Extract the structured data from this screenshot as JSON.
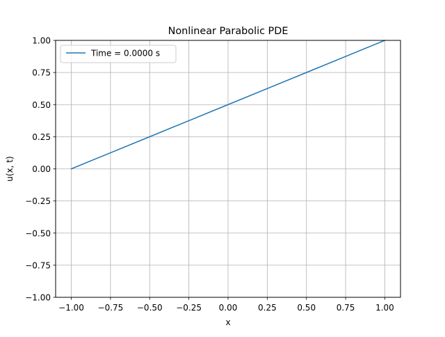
{
  "chart_data": {
    "type": "line",
    "title": "Nonlinear Parabolic PDE",
    "xlabel": "x",
    "ylabel": "u(x, t)",
    "xlim": [
      -1.1,
      1.1
    ],
    "ylim": [
      -1.0,
      1.0
    ],
    "x_ticks": [
      -1.0,
      -0.75,
      -0.5,
      -0.25,
      0.0,
      0.25,
      0.5,
      0.75,
      1.0
    ],
    "x_tick_labels": [
      "−1.00",
      "−0.75",
      "−0.50",
      "−0.25",
      "0.00",
      "0.25",
      "0.50",
      "0.75",
      "1.00"
    ],
    "y_ticks": [
      -1.0,
      -0.75,
      -0.5,
      -0.25,
      0.0,
      0.25,
      0.5,
      0.75,
      1.0
    ],
    "y_tick_labels": [
      "−1.00",
      "−0.75",
      "−0.50",
      "−0.25",
      "0.00",
      "0.25",
      "0.50",
      "0.75",
      "1.00"
    ],
    "grid": true,
    "legend_position": "top-left",
    "series": [
      {
        "name": "Time = 0.0000 s",
        "color": "#1f77b4",
        "x": [
          -1.0,
          -0.75,
          -0.5,
          -0.25,
          0.0,
          0.25,
          0.5,
          0.75,
          1.0
        ],
        "y": [
          0.0,
          0.125,
          0.25,
          0.375,
          0.5,
          0.625,
          0.75,
          0.875,
          1.0
        ]
      }
    ]
  }
}
